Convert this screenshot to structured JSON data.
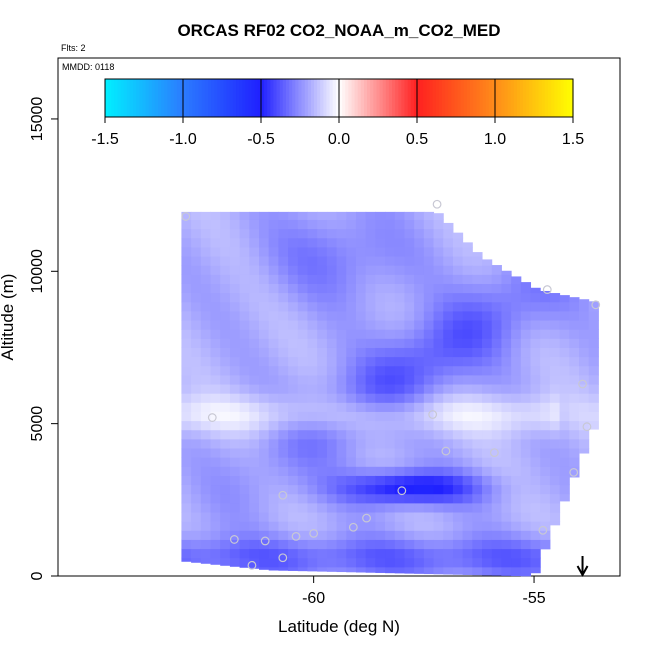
{
  "chart_data": {
    "type": "heatmap",
    "title": "ORCAS RF02 CO2_NOAA_m_CO2_MED",
    "flights_label": "Flts: 2",
    "date_label": "MMDD: 0118",
    "xlabel": "Latitude (deg N)",
    "ylabel": "Altitude (m)",
    "xlim": [
      -65.8,
      -53.05
    ],
    "ylim": [
      0,
      17000
    ],
    "x_ticks": [
      -60,
      -55
    ],
    "x_tick_labels": [
      "-60",
      "-55"
    ],
    "y_ticks": [
      0,
      5000,
      10000,
      15000
    ],
    "y_tick_labels": [
      "0",
      "5000",
      "10000",
      "15000"
    ],
    "colorbar": {
      "range": [
        -1.5,
        1.5
      ],
      "ticks": [
        -1.5,
        -1.0,
        -0.5,
        0.0,
        0.5,
        1.0,
        1.5
      ],
      "tick_labels": [
        "-1.5",
        "-1.0",
        "-0.5",
        "0.0",
        "0.5",
        "1.0",
        "1.5"
      ],
      "stops": [
        {
          "v": -1.5,
          "color": "#00f0ff"
        },
        {
          "v": -1.0,
          "color": "#2b7bff"
        },
        {
          "v": -0.5,
          "color": "#2020ff"
        },
        {
          "v": 0.0,
          "color": "#ffffff"
        },
        {
          "v": 0.5,
          "color": "#ff2020"
        },
        {
          "v": 1.0,
          "color": "#ff8c1a"
        },
        {
          "v": 1.5,
          "color": "#ffff00"
        }
      ]
    },
    "grid": false,
    "field": {
      "lat_range": [
        -63.0,
        -53.6
      ],
      "alt_top_profile": [
        {
          "lat": -63.0,
          "alt": 11950
        },
        {
          "lat": -57.2,
          "alt": 11950
        },
        {
          "lat": -56.2,
          "alt": 10500
        },
        {
          "lat": -54.9,
          "alt": 9400
        },
        {
          "lat": -53.6,
          "alt": 9000
        }
      ],
      "alt_bottom_profile": [
        {
          "lat": -63.0,
          "alt": 500
        },
        {
          "lat": -61.0,
          "alt": 200
        },
        {
          "lat": -55.0,
          "alt": 0
        },
        {
          "lat": -53.6,
          "alt": 5000
        }
      ],
      "base_value": -0.18,
      "features": [
        {
          "name": "upper-diagonal-band",
          "lat": -57.5,
          "alt": 8800,
          "value": -0.38
        },
        {
          "name": "upper-left-patch",
          "lat": -59.5,
          "alt": 10500,
          "value": -0.3
        },
        {
          "name": "mid-light-band",
          "lat": -58.5,
          "alt": 5300,
          "value": -0.05
        },
        {
          "name": "lower-core",
          "lat": -57.8,
          "alt": 2900,
          "value": -0.55
        },
        {
          "name": "surface-layer",
          "lat": -60.0,
          "alt": 600,
          "value": -0.35
        }
      ]
    },
    "sample_points": [
      {
        "lat": -62.9,
        "alt": 11800
      },
      {
        "lat": -57.2,
        "alt": 12200
      },
      {
        "lat": -53.6,
        "alt": 8900
      },
      {
        "lat": -54.7,
        "alt": 9400
      },
      {
        "lat": -53.9,
        "alt": 6300
      },
      {
        "lat": -62.3,
        "alt": 5200
      },
      {
        "lat": -57.3,
        "alt": 5300
      },
      {
        "lat": -57.0,
        "alt": 4100
      },
      {
        "lat": -55.9,
        "alt": 4050
      },
      {
        "lat": -54.1,
        "alt": 3400
      },
      {
        "lat": -53.8,
        "alt": 4900
      },
      {
        "lat": -58.0,
        "alt": 2800
      },
      {
        "lat": -60.7,
        "alt": 2650
      },
      {
        "lat": -58.8,
        "alt": 1900
      },
      {
        "lat": -61.8,
        "alt": 1200
      },
      {
        "lat": -61.1,
        "alt": 1150
      },
      {
        "lat": -60.4,
        "alt": 1300
      },
      {
        "lat": -60.0,
        "alt": 1400
      },
      {
        "lat": -59.1,
        "alt": 1600
      },
      {
        "lat": -60.7,
        "alt": 600
      },
      {
        "lat": -61.4,
        "alt": 350
      },
      {
        "lat": -54.8,
        "alt": 1500
      }
    ],
    "marker": {
      "type": "arrow-down",
      "lat": -53.9
    }
  }
}
